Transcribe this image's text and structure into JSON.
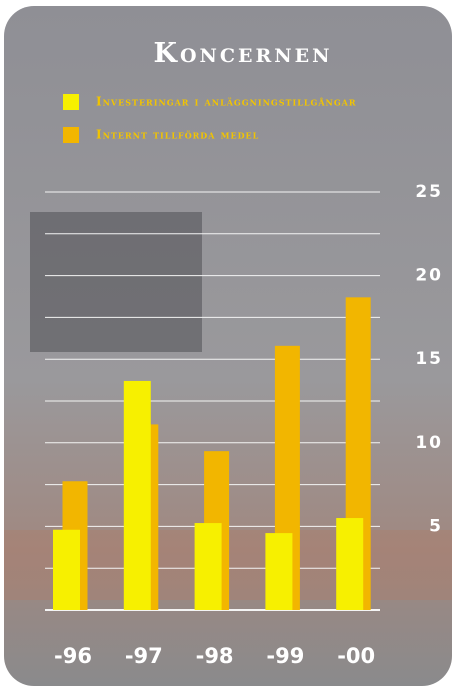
{
  "chart_data": {
    "type": "bar",
    "title": "Koncernen",
    "categories": [
      "-96",
      "-97",
      "-98",
      "-99",
      "-00"
    ],
    "series": [
      {
        "name": "Investeringar i anläggningstillgångar",
        "color": "#f7f000",
        "values": [
          4.8,
          13.7,
          5.2,
          4.6,
          5.5
        ]
      },
      {
        "name": "Internt tillförda medel",
        "color": "#f2b600",
        "values": [
          7.7,
          11.1,
          9.5,
          15.8,
          18.7
        ]
      }
    ],
    "ylim": [
      0,
      25
    ],
    "yticks": [
      5,
      10,
      15,
      20,
      25
    ],
    "ygrid": [
      0,
      2.5,
      5,
      7.5,
      10,
      12.5,
      15,
      17.5,
      20,
      22.5,
      25
    ],
    "grid": true
  }
}
